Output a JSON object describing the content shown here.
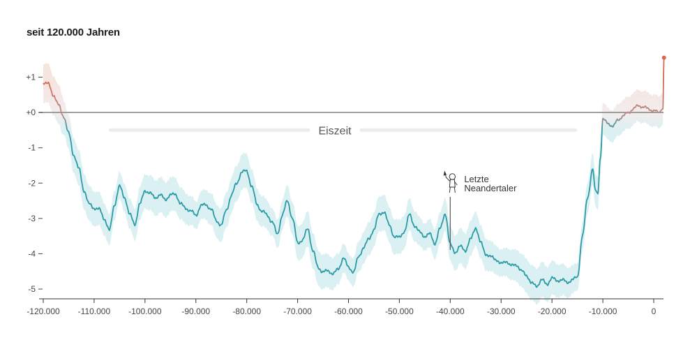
{
  "title": "seit 120.000 Jahren",
  "chart_data": {
    "type": "line",
    "title": "seit 120.000 Jahren",
    "xlabel": "",
    "ylabel": "",
    "xlim": [
      -120000,
      2023
    ],
    "ylim": [
      -5.2,
      1.4
    ],
    "x_ticks": [
      -120000,
      -110000,
      -100000,
      -90000,
      -80000,
      -70000,
      -60000,
      -50000,
      -40000,
      -30000,
      -20000,
      -10000,
      0
    ],
    "x_tick_labels": [
      "-120.000",
      "-110.000",
      "-100.000",
      "-90.000",
      "-80.000",
      "-70.000",
      "-60.000",
      "-50.000",
      "-40.000",
      "-30.000",
      "-20.000",
      "-10.000",
      "0"
    ],
    "y_ticks": [
      1,
      0,
      -1,
      -2,
      -3,
      -4,
      -5
    ],
    "y_tick_labels": [
      "+1",
      "+0",
      "-1",
      "-2",
      "-3",
      "-4",
      "-5"
    ],
    "baseline": 0,
    "grid": false,
    "colors": {
      "cold": "#2a9aa5",
      "warm": "#d9694f",
      "band_cold": "#d8eff2",
      "band_warm": "#f6e2dc",
      "baseline": "#8a8a8a"
    },
    "series": [
      {
        "x": [
          -120000,
          -119000,
          -118000,
          -117000,
          -116000,
          -115000,
          -114000,
          -113000,
          -112000,
          -111000,
          -110000,
          -109000,
          -108000,
          -107000,
          -106000,
          -105000,
          -104000,
          -103000,
          -102000,
          -101000,
          -100000,
          -99000,
          -98000,
          -97000,
          -96000,
          -95000,
          -94000,
          -93000,
          -92000,
          -91000,
          -90000,
          -89000,
          -88000,
          -87000,
          -86000,
          -85000,
          -84000,
          -83000,
          -82000,
          -81000,
          -80000,
          -79000,
          -78000,
          -77000,
          -76000,
          -75000,
          -74000,
          -73000,
          -72000,
          -71000,
          -70000,
          -69000,
          -68000,
          -67000,
          -66000,
          -65000,
          -64000,
          -63000,
          -62000,
          -61000,
          -60000,
          -59000,
          -58000,
          -57000,
          -56000,
          -55000,
          -54000,
          -53000,
          -52000,
          -51000,
          -50000,
          -49000,
          -48000,
          -47000,
          -46000,
          -45000,
          -44000,
          -43000,
          -42000,
          -41000,
          -40000,
          -39000,
          -38000,
          -37000,
          -36000,
          -35000,
          -34000,
          -33000,
          -32000,
          -31000,
          -30000,
          -29000,
          -28000,
          -27000,
          -26000,
          -25000,
          -24000,
          -23000,
          -22000,
          -21000,
          -20000,
          -19000,
          -18000,
          -17000,
          -16000,
          -15000,
          -14000,
          -13000,
          -12000,
          -11500,
          -11000,
          -10500,
          -10000,
          -9000,
          -8000,
          -7000,
          -6000,
          -5000,
          -4000,
          -3000,
          -2000,
          -1000,
          0,
          1000,
          1800,
          2023
        ],
        "y": [
          0.85,
          0.8,
          0.5,
          0.2,
          -0.1,
          -0.6,
          -1.2,
          -1.6,
          -2.2,
          -2.6,
          -2.7,
          -2.75,
          -3.0,
          -3.35,
          -2.6,
          -2.1,
          -2.4,
          -2.9,
          -3.15,
          -2.6,
          -2.2,
          -2.3,
          -2.4,
          -2.35,
          -2.45,
          -2.35,
          -2.3,
          -2.6,
          -2.7,
          -2.8,
          -2.9,
          -2.65,
          -2.6,
          -2.75,
          -3.05,
          -3.2,
          -2.75,
          -2.35,
          -2.0,
          -1.7,
          -1.65,
          -2.1,
          -2.6,
          -2.8,
          -2.9,
          -3.1,
          -3.45,
          -2.9,
          -2.5,
          -3.0,
          -3.7,
          -3.6,
          -3.3,
          -3.9,
          -4.4,
          -4.5,
          -4.5,
          -4.55,
          -4.45,
          -4.1,
          -4.4,
          -4.5,
          -4.1,
          -3.8,
          -3.6,
          -3.3,
          -2.9,
          -2.8,
          -3.2,
          -3.5,
          -3.55,
          -3.35,
          -2.9,
          -3.2,
          -3.4,
          -3.5,
          -3.45,
          -3.7,
          -3.3,
          -2.85,
          -3.75,
          -3.95,
          -3.8,
          -3.9,
          -3.6,
          -3.25,
          -3.7,
          -4.0,
          -4.1,
          -4.15,
          -4.3,
          -4.2,
          -4.35,
          -4.3,
          -4.5,
          -4.6,
          -4.85,
          -4.9,
          -4.75,
          -4.85,
          -4.7,
          -4.75,
          -4.75,
          -4.8,
          -4.75,
          -4.65,
          -3.5,
          -2.4,
          -1.6,
          -2.2,
          -2.3,
          -1.3,
          -0.2,
          -0.3,
          -0.4,
          -0.2,
          -0.1,
          0.0,
          0.1,
          0.2,
          0.15,
          0.1,
          0.05,
          0.0,
          0.1,
          1.55
        ]
      }
    ],
    "annotations": [
      {
        "text_lines": [
          "Letzte",
          "Neandertaler"
        ],
        "x": -40000,
        "icon": "neanderthal-icon"
      },
      {
        "text": "Eiszeit",
        "range": [
          -115000,
          -12000
        ],
        "y": -0.5
      }
    ]
  }
}
